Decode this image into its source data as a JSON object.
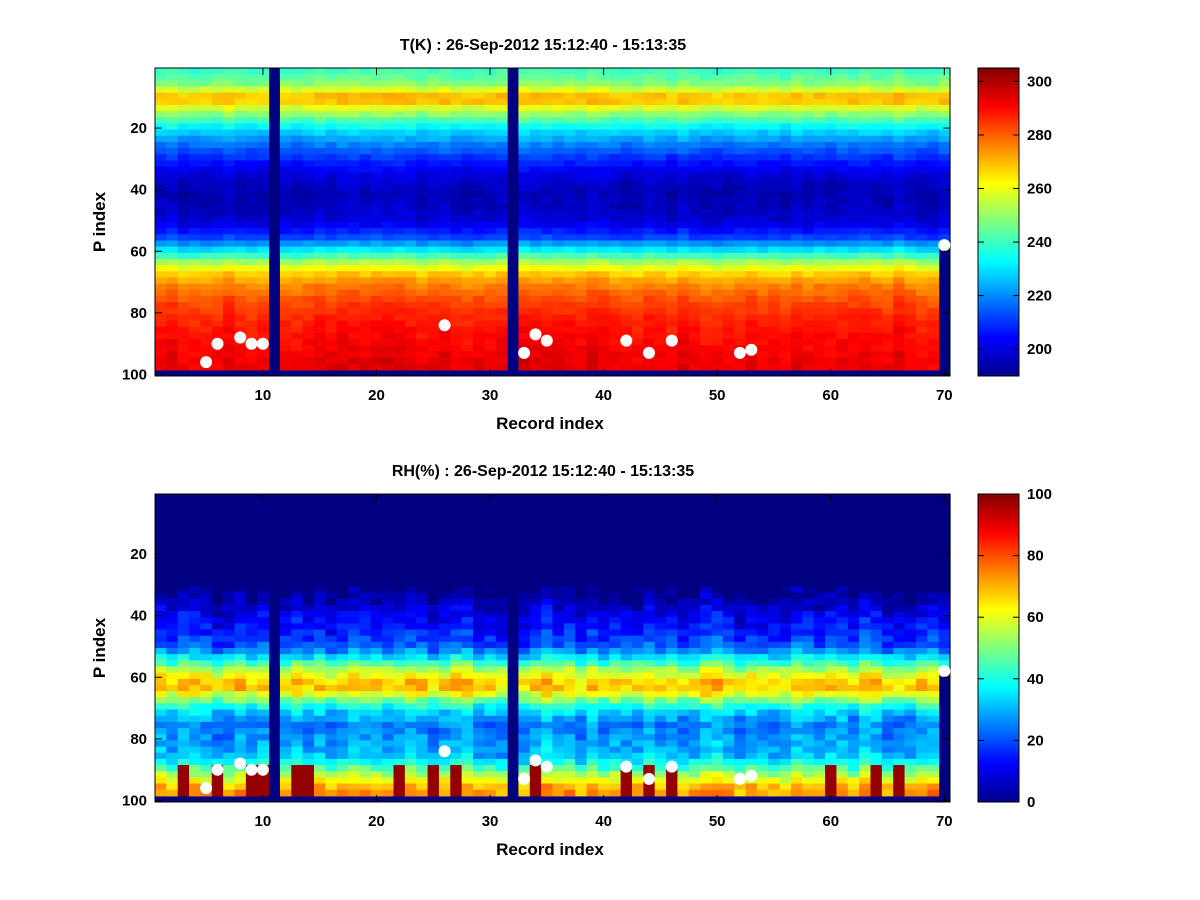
{
  "chart_data": [
    {
      "type": "heatmap",
      "title": "T(K) : 26-Sep-2012 15:12:40 - 15:13:35",
      "xlabel": "Record index",
      "ylabel": "P index",
      "xlim": [
        1,
        70
      ],
      "ylim": [
        100,
        1
      ],
      "y_reversed": true,
      "xticks": [
        "10",
        "20",
        "30",
        "40",
        "50",
        "60",
        "70"
      ],
      "yticks": [
        "20",
        "40",
        "60",
        "80",
        "100"
      ],
      "colorbar": {
        "min": 190,
        "max": 305,
        "ticks": [
          "200",
          "220",
          "240",
          "260",
          "280",
          "300"
        ],
        "colormap": "jet"
      },
      "profile": {
        "p": [
          1,
          5,
          8,
          10,
          12,
          16,
          20,
          25,
          30,
          35,
          40,
          45,
          50,
          55,
          60,
          63,
          66,
          70,
          75,
          80,
          85,
          90,
          95,
          98
        ],
        "value": [
          240,
          248,
          262,
          275,
          262,
          245,
          230,
          218,
          208,
          200,
          196,
          197,
          200,
          212,
          235,
          252,
          265,
          275,
          282,
          286,
          289,
          291,
          293,
          293
        ]
      },
      "bottom_level": 98,
      "gap_records": [
        11,
        32
      ],
      "markers": {
        "x": [
          5,
          6,
          8,
          9,
          10,
          26,
          33,
          34,
          35,
          42,
          44,
          46,
          52,
          53,
          70
        ],
        "y": [
          96,
          90,
          88,
          90,
          90,
          84,
          93,
          87,
          89,
          89,
          93,
          89,
          93,
          92,
          58
        ],
        "color": "#ffffff"
      }
    },
    {
      "type": "heatmap",
      "title": "RH(%) : 26-Sep-2012 15:12:40 - 15:13:35",
      "xlabel": "Record index",
      "ylabel": "P index",
      "xlim": [
        1,
        70
      ],
      "ylim": [
        100,
        1
      ],
      "y_reversed": true,
      "xticks": [
        "10",
        "20",
        "30",
        "40",
        "50",
        "60",
        "70"
      ],
      "yticks": [
        "20",
        "40",
        "60",
        "80",
        "100"
      ],
      "colorbar": {
        "min": 0,
        "max": 100,
        "ticks": [
          "0",
          "20",
          "40",
          "60",
          "80",
          "100"
        ],
        "colormap": "jet"
      },
      "profile": {
        "p": [
          1,
          30,
          35,
          40,
          45,
          50,
          54,
          57,
          60,
          62,
          64,
          66,
          70,
          75,
          80,
          85,
          88,
          92,
          95,
          98
        ],
        "value": [
          0,
          0,
          5,
          12,
          16,
          22,
          40,
          55,
          65,
          70,
          66,
          55,
          35,
          25,
          28,
          32,
          42,
          58,
          70,
          75
        ]
      },
      "bottom_level": 98,
      "gap_records": [
        11,
        32
      ],
      "saturated_columns": [
        3,
        6,
        9,
        10,
        13,
        14,
        22,
        25,
        27,
        34,
        42,
        44,
        46,
        60,
        64,
        66
      ],
      "markers": {
        "x": [
          5,
          6,
          8,
          9,
          10,
          26,
          33,
          34,
          35,
          42,
          44,
          46,
          52,
          53,
          70
        ],
        "y": [
          96,
          90,
          88,
          90,
          90,
          84,
          93,
          87,
          89,
          89,
          93,
          89,
          93,
          92,
          58
        ],
        "color": "#ffffff"
      }
    }
  ]
}
